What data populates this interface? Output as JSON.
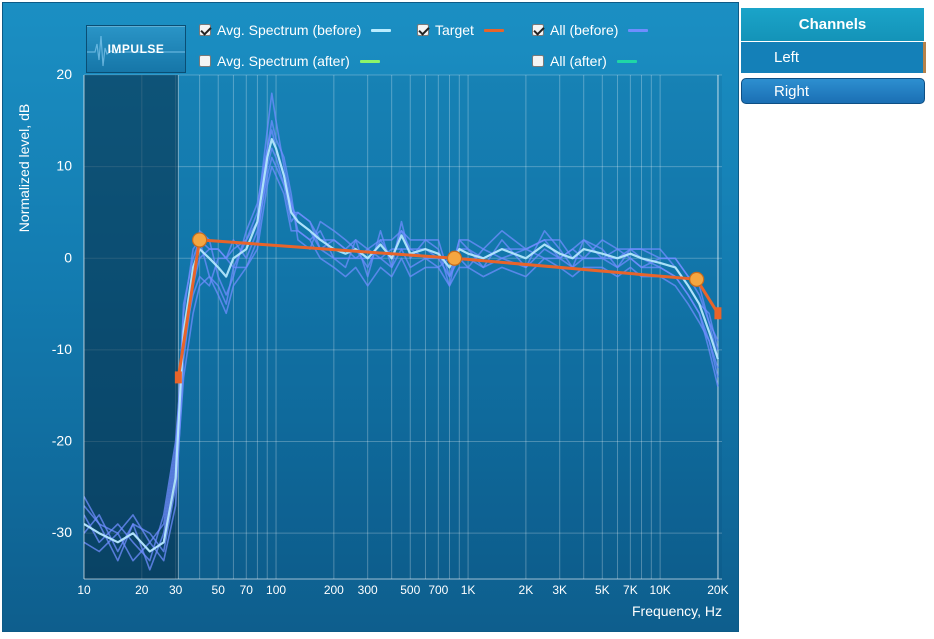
{
  "impulse_button": {
    "label": "IMPULSE"
  },
  "legend": [
    {
      "label": "Avg. Spectrum (before)",
      "checked": true,
      "color": "#b9ecff"
    },
    {
      "label": "Target",
      "checked": true,
      "color": "#e8642a"
    },
    {
      "label": "All (before)",
      "checked": true,
      "color": "#6f8dff"
    },
    {
      "label": "Avg. Spectrum (after)",
      "checked": false,
      "color": "#8cf56a"
    },
    {
      "label": "All (after)",
      "checked": false,
      "color": "#1fd6a6"
    }
  ],
  "channels": {
    "header": "Channels",
    "items": [
      {
        "label": "Left",
        "selected": true
      },
      {
        "label": "Right",
        "selected": false
      }
    ]
  },
  "chart_data": {
    "type": "line",
    "xlabel": "Frequency, Hz",
    "ylabel": "Normalized level, dB",
    "xscale": "log",
    "xlim": [
      10,
      21000
    ],
    "ylim": [
      -35,
      20
    ],
    "x_ticks": [
      {
        "value": 10,
        "label": "10"
      },
      {
        "value": 20,
        "label": "20"
      },
      {
        "value": 30,
        "label": "30"
      },
      {
        "value": 50,
        "label": "50"
      },
      {
        "value": 70,
        "label": "70"
      },
      {
        "value": 100,
        "label": "100"
      },
      {
        "value": 200,
        "label": "200"
      },
      {
        "value": 300,
        "label": "300"
      },
      {
        "value": 500,
        "label": "500"
      },
      {
        "value": 700,
        "label": "700"
      },
      {
        "value": 1000,
        "label": "1K"
      },
      {
        "value": 2000,
        "label": "2K"
      },
      {
        "value": 3000,
        "label": "3K"
      },
      {
        "value": 5000,
        "label": "5K"
      },
      {
        "value": 7000,
        "label": "7K"
      },
      {
        "value": 10000,
        "label": "10K"
      },
      {
        "value": 20000,
        "label": "20K"
      }
    ],
    "y_ticks": [
      {
        "value": 20,
        "label": "20"
      },
      {
        "value": 10,
        "label": "10"
      },
      {
        "value": 0,
        "label": "0"
      },
      {
        "value": -10,
        "label": "-10"
      },
      {
        "value": -20,
        "label": "-20"
      },
      {
        "value": -30,
        "label": "-30"
      }
    ],
    "shaded_region": {
      "from": 10,
      "to": 31
    },
    "target": {
      "name": "Target",
      "points": [
        [
          31,
          -13
        ],
        [
          40,
          2
        ],
        [
          850,
          0
        ],
        [
          15500,
          -2.3
        ],
        [
          20000,
          -6
        ]
      ],
      "handles": [
        [
          40,
          2
        ],
        [
          850,
          0
        ],
        [
          15500,
          -2.3
        ]
      ],
      "end_markers": [
        [
          31,
          -13
        ],
        [
          20000,
          -6
        ]
      ],
      "color": "#e8642a"
    },
    "avg_before": {
      "name": "Avg. Spectrum (before)",
      "color": "#b9ecff",
      "x": [
        10,
        12,
        15,
        18,
        22,
        26,
        30,
        33,
        37,
        40,
        45,
        50,
        55,
        60,
        70,
        80,
        90,
        95,
        100,
        110,
        120,
        130,
        150,
        170,
        200,
        230,
        260,
        300,
        350,
        400,
        450,
        500,
        600,
        700,
        800,
        900,
        1000,
        1200,
        1500,
        2000,
        2500,
        3000,
        3500,
        4000,
        5000,
        6000,
        7000,
        8000,
        10000,
        12000,
        14000,
        16000,
        18000,
        20000
      ],
      "y": [
        -29,
        -30,
        -31,
        -30,
        -32,
        -31,
        -24,
        -8,
        -1,
        1,
        0,
        -1,
        -2,
        0,
        1,
        4,
        11,
        13,
        12,
        9,
        5,
        4,
        3,
        2,
        1,
        0.5,
        1,
        0,
        1.5,
        0,
        2.5,
        0.5,
        1,
        0.5,
        -1,
        1,
        0.5,
        0,
        1,
        0,
        1.5,
        0.5,
        0,
        1,
        0.5,
        0,
        0.5,
        0,
        -0.5,
        -1,
        -3,
        -5,
        -8,
        -11
      ]
    },
    "all_before": {
      "name": "All (before)",
      "color": "#6f8dff",
      "series": [
        {
          "y": [
            -27,
            -29,
            -33,
            -29,
            -34,
            -30,
            -22,
            -6,
            1,
            2,
            -2,
            -3,
            -5,
            -1,
            2,
            5,
            14,
            18,
            15,
            10,
            6,
            3,
            2,
            3,
            0,
            -1,
            2,
            -2,
            3,
            -1,
            4,
            0,
            2,
            1,
            -3,
            2,
            1,
            -1,
            2,
            -1,
            3,
            1,
            -1,
            2,
            1,
            -1,
            1,
            0,
            -1,
            -2,
            -4,
            -6,
            -10,
            -14
          ]
        },
        {
          "y": [
            -31,
            -32,
            -30,
            -33,
            -31,
            -33,
            -27,
            -11,
            -3,
            0,
            1,
            1,
            0,
            2,
            0,
            3,
            9,
            11,
            10,
            8,
            4,
            5,
            4,
            1,
            2,
            1,
            0,
            1,
            0,
            1,
            1,
            1,
            0,
            -1,
            0,
            0,
            -1,
            1,
            0,
            1,
            0,
            0,
            1,
            0,
            0,
            1,
            0,
            -1,
            0,
            0,
            -2,
            -4,
            -7,
            -9
          ]
        },
        {
          "y": [
            -28,
            -31,
            -29,
            -31,
            -33,
            -28,
            -20,
            -9,
            -2,
            3,
            2,
            -2,
            -4,
            -2,
            3,
            6,
            12,
            15,
            13,
            11,
            7,
            2,
            1,
            4,
            3,
            2,
            1,
            -1,
            2,
            2,
            3,
            2,
            2,
            2,
            -2,
            2,
            2,
            1,
            3,
            1,
            2,
            2,
            0,
            0,
            2,
            1,
            1,
            1,
            1,
            -1,
            -3,
            -5,
            -6,
            -10
          ]
        },
        {
          "y": [
            -30,
            -28,
            -32,
            -29,
            -30,
            -32,
            -25,
            -13,
            -6,
            -3,
            -2,
            -4,
            -6,
            -3,
            -1,
            1,
            8,
            10,
            9,
            7,
            3,
            3,
            2,
            0,
            -1,
            -2,
            -1,
            -3,
            -1,
            -2,
            0,
            -2,
            -1,
            -1,
            -3,
            -1,
            -1,
            -2,
            -1,
            -2,
            0,
            -1,
            -2,
            -1,
            -1,
            -2,
            -1,
            -2,
            -2,
            -3,
            -5,
            -7,
            -9,
            -13
          ]
        },
        {
          "y": [
            -29,
            -30,
            -31,
            -30,
            -32,
            -31,
            -23,
            -5,
            0,
            2,
            1,
            1,
            0,
            1,
            2,
            4,
            12,
            14,
            12,
            9,
            5,
            5,
            4,
            2,
            2,
            1,
            2,
            1,
            2,
            0,
            3,
            1,
            1,
            0,
            0,
            1,
            1,
            0,
            1,
            1,
            2,
            0,
            1,
            2,
            0,
            0,
            1,
            1,
            0,
            0,
            -2,
            -3,
            -7,
            -11
          ]
        },
        {
          "y": [
            -26,
            -29,
            -30,
            -28,
            -31,
            -29,
            -21,
            -9,
            -4,
            -2,
            -3,
            0,
            0,
            -1,
            -1,
            2,
            10,
            12,
            11,
            8,
            6,
            4,
            3,
            1,
            0,
            0,
            0,
            0,
            0,
            -1,
            1,
            -1,
            0,
            0,
            -2,
            0,
            0,
            -1,
            0,
            -1,
            1,
            0,
            -1,
            0,
            0,
            -1,
            0,
            -1,
            -1,
            -2,
            -4,
            -6,
            -9,
            -12
          ]
        }
      ]
    }
  }
}
